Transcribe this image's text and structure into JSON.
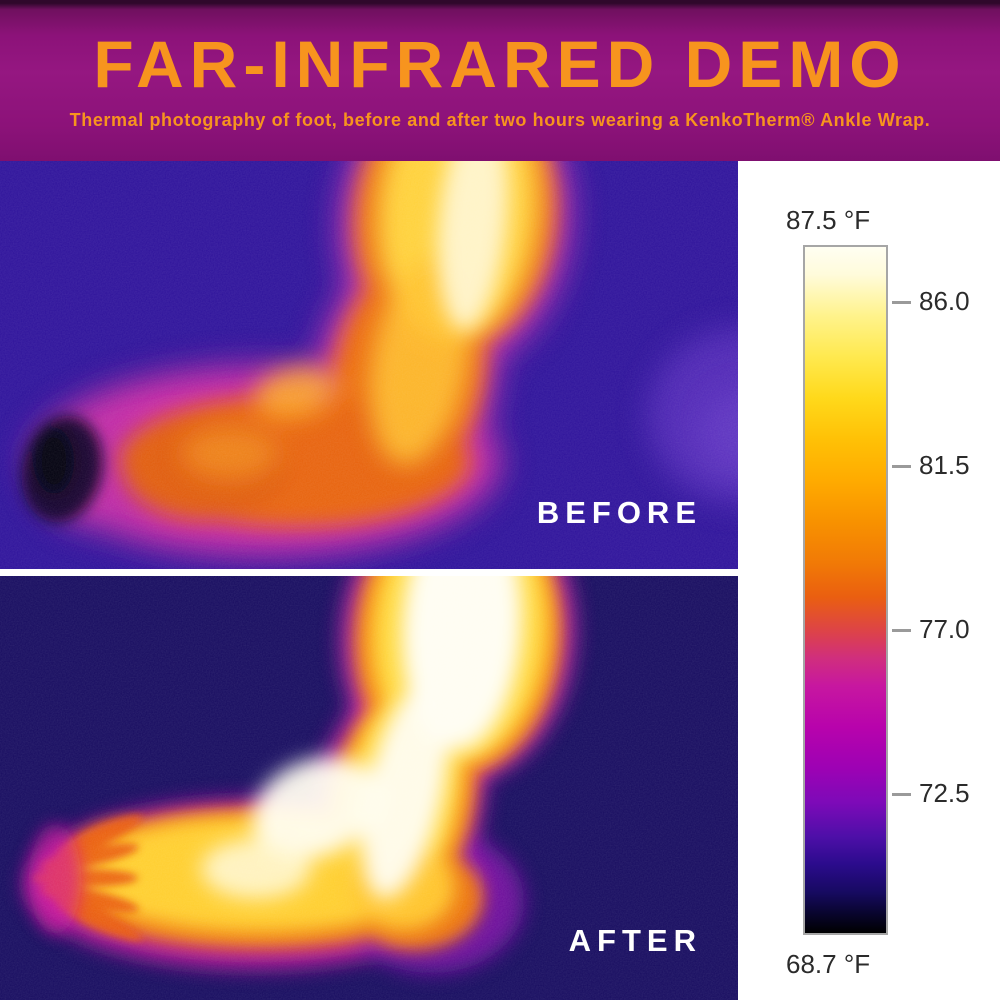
{
  "header": {
    "title": "FAR-INFRARED DEMO",
    "subtitle": "Thermal photography of foot, before and after two hours wearing a KenkoTherm® Ankle Wrap."
  },
  "panels": {
    "before": {
      "label": "BEFORE"
    },
    "after": {
      "label": "AFTER"
    }
  },
  "colors": {
    "header_bg": "#8e1279",
    "accent_orange": "#f7941e",
    "before_bg": "#2e129b",
    "after_bg": "#170c60",
    "label_text": "#ffffff",
    "scale_text": "#2b2b2b"
  },
  "chart_data": {
    "type": "colorbar",
    "orientation": "vertical",
    "unit": "°F",
    "max_value": 87.5,
    "min_value": 68.7,
    "max_label": "87.5 °F",
    "min_label": "68.7 °F",
    "ticks": [
      {
        "value": 86.0,
        "label": "86.0"
      },
      {
        "value": 81.5,
        "label": "81.5"
      },
      {
        "value": 77.0,
        "label": "77.0"
      },
      {
        "value": 72.5,
        "label": "72.5"
      }
    ],
    "gradient_stops": [
      {
        "pos": 0,
        "color": "#fffef2"
      },
      {
        "pos": 4,
        "color": "#fffbdb"
      },
      {
        "pos": 10,
        "color": "#fff38c"
      },
      {
        "pos": 16,
        "color": "#ffe94f"
      },
      {
        "pos": 22,
        "color": "#ffd91b"
      },
      {
        "pos": 28,
        "color": "#ffc106"
      },
      {
        "pos": 34,
        "color": "#ffab00"
      },
      {
        "pos": 40,
        "color": "#f89200"
      },
      {
        "pos": 46,
        "color": "#f17a06"
      },
      {
        "pos": 51,
        "color": "#ea5f10"
      },
      {
        "pos": 56,
        "color": "#dd4348"
      },
      {
        "pos": 60,
        "color": "#d02e7e"
      },
      {
        "pos": 64,
        "color": "#c717a0"
      },
      {
        "pos": 70,
        "color": "#b803ac"
      },
      {
        "pos": 76,
        "color": "#9d02b4"
      },
      {
        "pos": 81,
        "color": "#7d0ab8"
      },
      {
        "pos": 86,
        "color": "#4d0fa8"
      },
      {
        "pos": 90,
        "color": "#2b0b8c"
      },
      {
        "pos": 94,
        "color": "#170a62"
      },
      {
        "pos": 97,
        "color": "#090530"
      },
      {
        "pos": 100,
        "color": "#000000"
      }
    ]
  }
}
